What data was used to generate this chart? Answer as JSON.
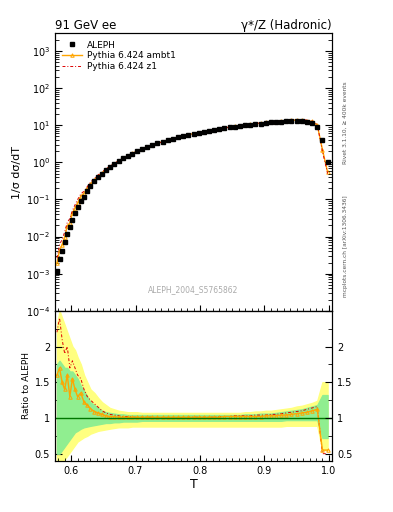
{
  "title_left": "91 GeV ee",
  "title_right": "γ*/Z (Hadronic)",
  "xlabel": "T",
  "ylabel_main": "1/σ dσ/dT",
  "ylabel_ratio": "Ratio to ALEPH",
  "right_label_top": "Rivet 3.1.10, ≥ 400k events",
  "right_label_bottom": "mcplots.cern.ch [arXiv:1306.3436]",
  "watermark": "ALEPH_2004_S5765862",
  "ylim_main": [
    0.0001,
    3000.0
  ],
  "ylim_ratio": [
    0.4,
    2.5
  ],
  "xlim": [
    0.575,
    1.005
  ],
  "xticks": [
    0.6,
    0.7,
    0.8,
    0.9,
    1.0
  ],
  "legend_entries": [
    "ALEPH",
    "Pythia 6.424 ambt1",
    "Pythia 6.424 z1"
  ],
  "data_T": [
    0.578,
    0.582,
    0.586,
    0.59,
    0.594,
    0.598,
    0.602,
    0.606,
    0.61,
    0.615,
    0.62,
    0.625,
    0.63,
    0.636,
    0.642,
    0.648,
    0.654,
    0.66,
    0.667,
    0.674,
    0.681,
    0.688,
    0.695,
    0.702,
    0.71,
    0.718,
    0.726,
    0.734,
    0.742,
    0.75,
    0.758,
    0.766,
    0.774,
    0.782,
    0.79,
    0.798,
    0.806,
    0.814,
    0.822,
    0.83,
    0.838,
    0.846,
    0.854,
    0.862,
    0.87,
    0.878,
    0.886,
    0.894,
    0.902,
    0.91,
    0.918,
    0.926,
    0.934,
    0.942,
    0.95,
    0.958,
    0.966,
    0.974,
    0.982,
    0.99,
    0.998
  ],
  "data_y": [
    0.0012,
    0.0025,
    0.004,
    0.007,
    0.012,
    0.018,
    0.028,
    0.042,
    0.062,
    0.09,
    0.12,
    0.17,
    0.23,
    0.31,
    0.4,
    0.5,
    0.62,
    0.75,
    0.9,
    1.08,
    1.28,
    1.5,
    1.72,
    1.98,
    2.25,
    2.55,
    2.88,
    3.22,
    3.58,
    3.95,
    4.3,
    4.7,
    5.1,
    5.5,
    5.9,
    6.3,
    6.7,
    7.1,
    7.5,
    7.9,
    8.3,
    8.7,
    9.1,
    9.5,
    9.9,
    10.3,
    10.7,
    11.1,
    11.5,
    11.9,
    12.2,
    12.5,
    12.7,
    12.9,
    13.0,
    12.8,
    12.3,
    11.5,
    9.0,
    4.0,
    1.0
  ],
  "mc1_ratio": [
    1.6,
    1.7,
    1.5,
    1.4,
    1.6,
    1.3,
    1.55,
    1.4,
    1.3,
    1.35,
    1.22,
    1.18,
    1.13,
    1.09,
    1.07,
    1.05,
    1.03,
    1.02,
    1.02,
    1.01,
    1.01,
    1.01,
    1.01,
    1.01,
    1.01,
    1.01,
    1.01,
    1.01,
    1.01,
    1.01,
    1.01,
    1.01,
    1.01,
    1.01,
    1.01,
    1.01,
    1.01,
    1.01,
    1.01,
    1.01,
    1.02,
    1.02,
    1.02,
    1.02,
    1.02,
    1.02,
    1.02,
    1.02,
    1.03,
    1.03,
    1.03,
    1.04,
    1.04,
    1.05,
    1.06,
    1.07,
    1.08,
    1.1,
    1.12,
    0.55,
    0.55
  ],
  "mc2_ratio": [
    2.2,
    2.4,
    2.1,
    1.9,
    2.0,
    1.7,
    1.8,
    1.7,
    1.6,
    1.55,
    1.4,
    1.3,
    1.25,
    1.2,
    1.15,
    1.1,
    1.07,
    1.05,
    1.04,
    1.03,
    1.02,
    1.02,
    1.01,
    1.01,
    1.01,
    1.01,
    1.01,
    1.0,
    1.0,
    1.0,
    1.0,
    1.0,
    1.0,
    1.01,
    1.01,
    1.01,
    1.01,
    1.01,
    1.01,
    1.02,
    1.02,
    1.02,
    1.03,
    1.03,
    1.03,
    1.03,
    1.04,
    1.04,
    1.04,
    1.05,
    1.05,
    1.06,
    1.07,
    1.08,
    1.09,
    1.1,
    1.12,
    1.14,
    1.16,
    0.5,
    0.5
  ],
  "band_green_lo": [
    0.5,
    0.5,
    0.55,
    0.6,
    0.65,
    0.7,
    0.75,
    0.8,
    0.82,
    0.85,
    0.87,
    0.88,
    0.89,
    0.9,
    0.91,
    0.92,
    0.93,
    0.93,
    0.94,
    0.94,
    0.95,
    0.95,
    0.95,
    0.95,
    0.96,
    0.96,
    0.96,
    0.96,
    0.96,
    0.96,
    0.96,
    0.96,
    0.96,
    0.96,
    0.96,
    0.96,
    0.96,
    0.96,
    0.96,
    0.96,
    0.96,
    0.96,
    0.96,
    0.96,
    0.96,
    0.96,
    0.96,
    0.96,
    0.96,
    0.96,
    0.96,
    0.96,
    0.97,
    0.97,
    0.97,
    0.97,
    0.97,
    0.97,
    0.97,
    0.72,
    0.72
  ],
  "band_green_hi": [
    1.75,
    1.8,
    1.75,
    1.7,
    1.7,
    1.65,
    1.65,
    1.6,
    1.55,
    1.45,
    1.38,
    1.3,
    1.22,
    1.18,
    1.14,
    1.1,
    1.08,
    1.07,
    1.06,
    1.05,
    1.05,
    1.04,
    1.04,
    1.04,
    1.04,
    1.04,
    1.04,
    1.04,
    1.04,
    1.04,
    1.04,
    1.04,
    1.04,
    1.04,
    1.04,
    1.04,
    1.04,
    1.04,
    1.04,
    1.04,
    1.04,
    1.04,
    1.04,
    1.04,
    1.05,
    1.05,
    1.05,
    1.06,
    1.06,
    1.06,
    1.07,
    1.08,
    1.09,
    1.1,
    1.11,
    1.12,
    1.14,
    1.16,
    1.18,
    1.32,
    1.32
  ],
  "band_yellow_lo": [
    0.35,
    0.35,
    0.38,
    0.42,
    0.47,
    0.52,
    0.57,
    0.62,
    0.67,
    0.7,
    0.73,
    0.75,
    0.78,
    0.8,
    0.82,
    0.83,
    0.84,
    0.85,
    0.86,
    0.87,
    0.87,
    0.87,
    0.88,
    0.88,
    0.88,
    0.88,
    0.88,
    0.88,
    0.88,
    0.88,
    0.88,
    0.88,
    0.88,
    0.88,
    0.88,
    0.88,
    0.88,
    0.88,
    0.88,
    0.88,
    0.88,
    0.88,
    0.88,
    0.88,
    0.88,
    0.88,
    0.88,
    0.88,
    0.88,
    0.88,
    0.88,
    0.88,
    0.89,
    0.89,
    0.89,
    0.89,
    0.89,
    0.89,
    0.89,
    0.55,
    0.55
  ],
  "band_yellow_hi": [
    2.3,
    2.5,
    2.4,
    2.3,
    2.2,
    2.1,
    2.0,
    1.95,
    1.85,
    1.75,
    1.6,
    1.5,
    1.4,
    1.35,
    1.28,
    1.22,
    1.18,
    1.14,
    1.12,
    1.1,
    1.09,
    1.08,
    1.08,
    1.08,
    1.07,
    1.07,
    1.07,
    1.07,
    1.07,
    1.07,
    1.07,
    1.07,
    1.07,
    1.07,
    1.07,
    1.07,
    1.07,
    1.07,
    1.07,
    1.07,
    1.07,
    1.07,
    1.07,
    1.07,
    1.08,
    1.08,
    1.09,
    1.09,
    1.1,
    1.1,
    1.11,
    1.12,
    1.13,
    1.14,
    1.16,
    1.17,
    1.19,
    1.21,
    1.24,
    1.5,
    1.5
  ],
  "color_mc1": "#FFA500",
  "color_mc2": "#DD0000",
  "color_band_green": "#90EE90",
  "color_band_yellow": "#FFFF80",
  "color_data": "#000000",
  "color_refline": "#007700",
  "bg_color": "#ffffff"
}
